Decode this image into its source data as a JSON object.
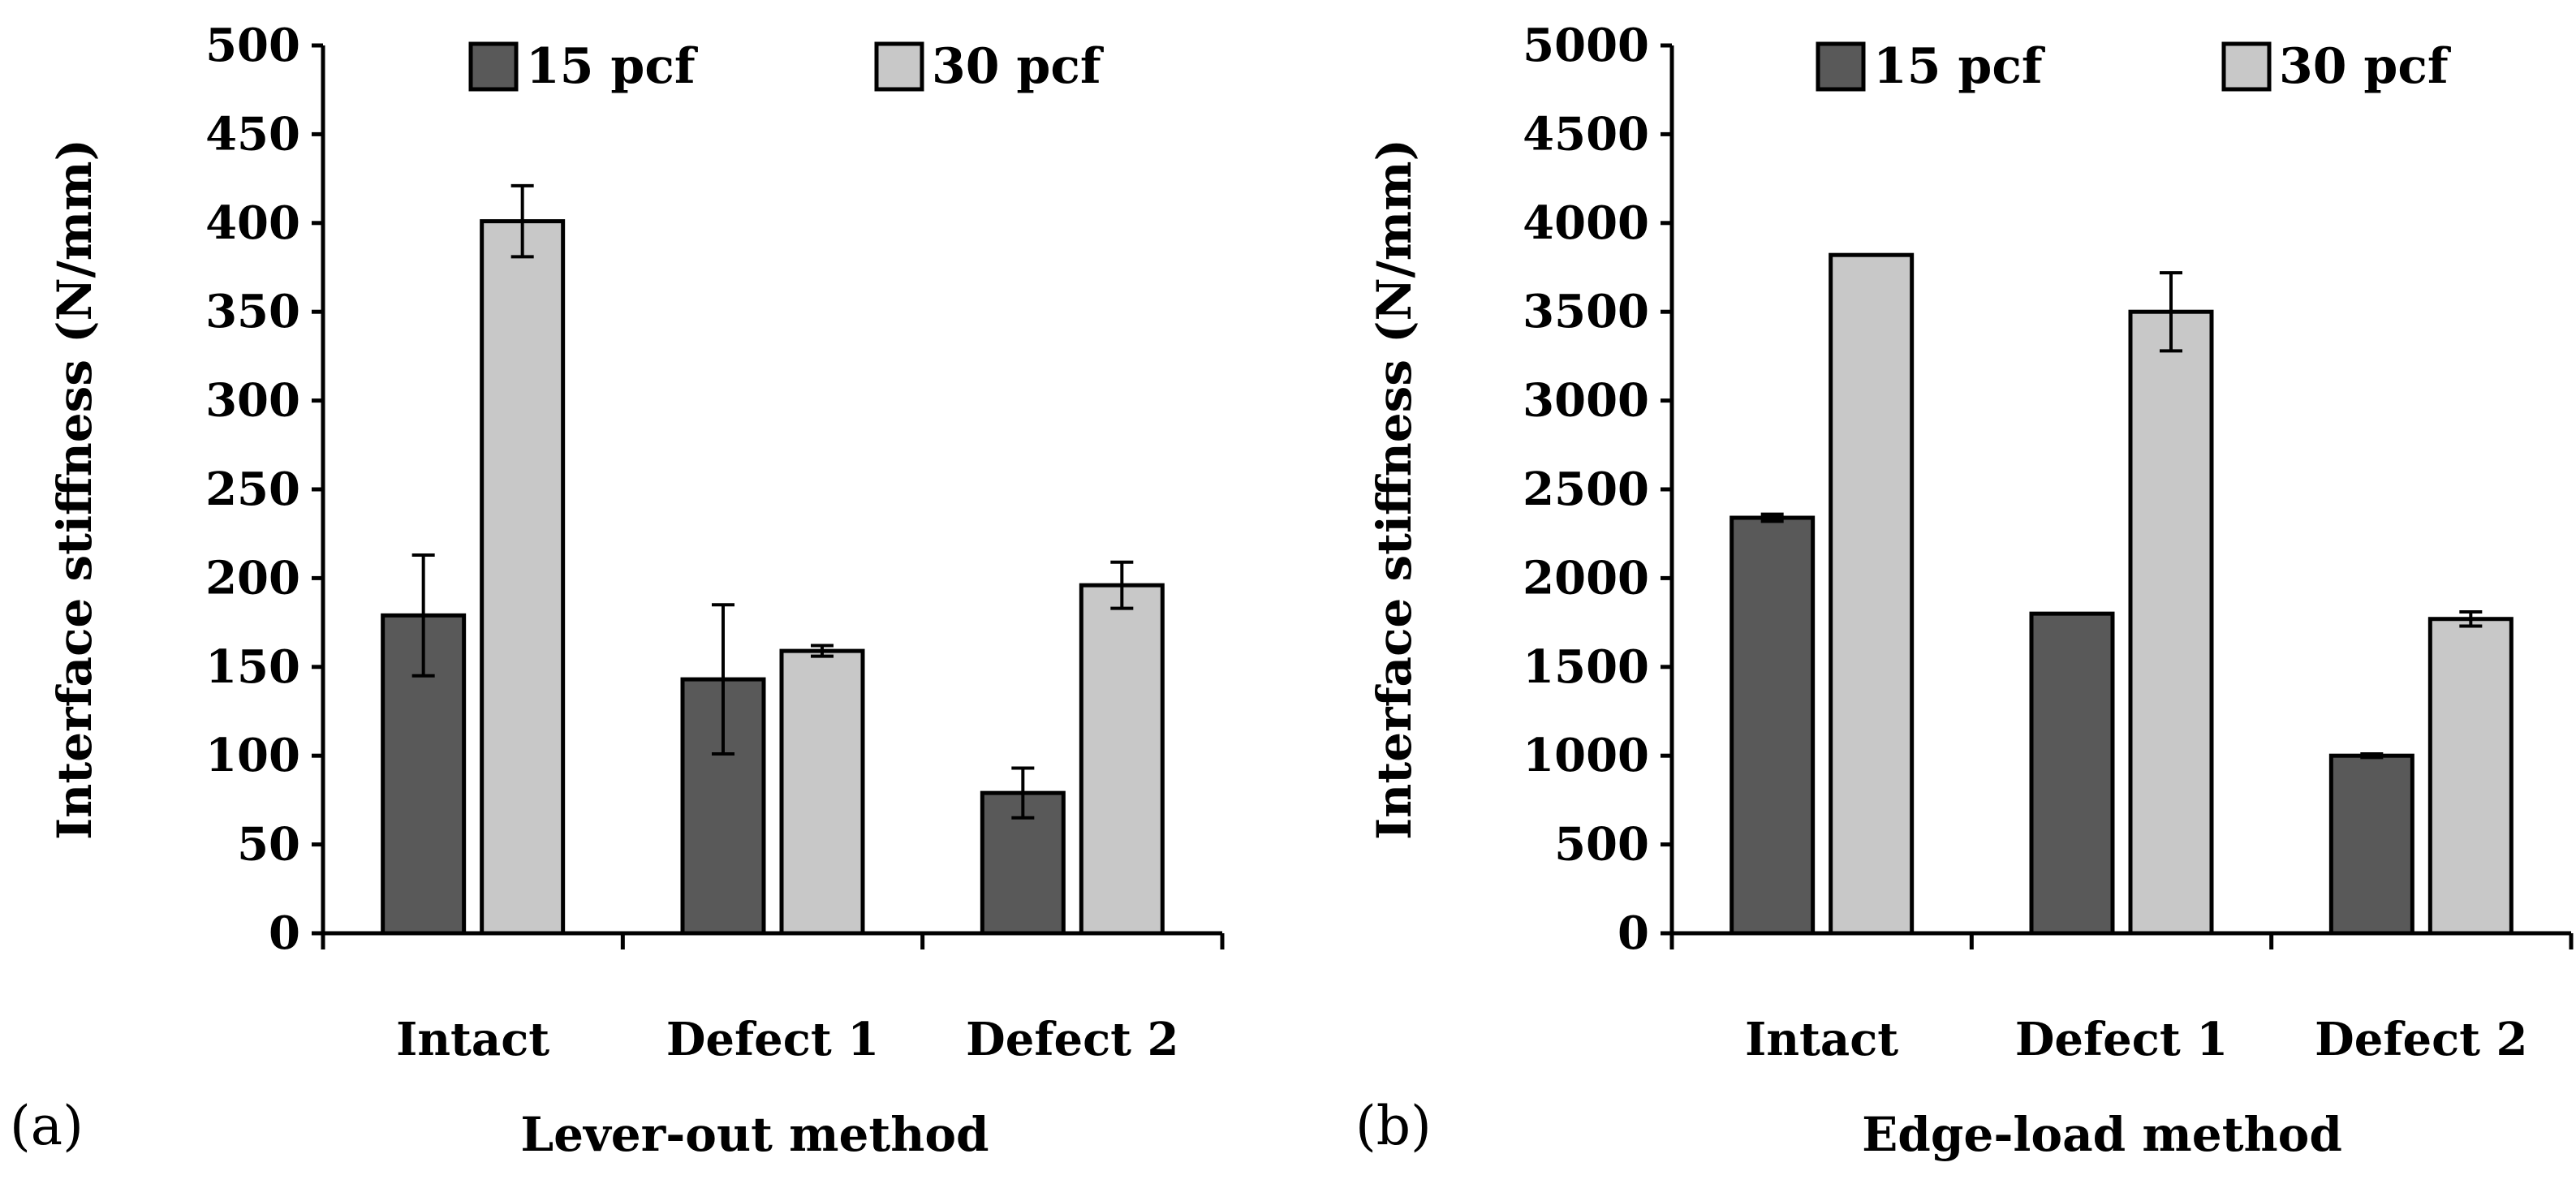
{
  "panels": [
    {
      "label": "(a)",
      "method": "Lever-out method"
    },
    {
      "label": "(b)",
      "method": "Edge-load method"
    }
  ],
  "colors": {
    "15 pcf": "#595959",
    "30 pcf": "#c8c8c8"
  },
  "chart_data": [
    {
      "type": "bar",
      "title": "",
      "xlabel": "Lever-out method",
      "ylabel": "Interface stiffness (N/mm)",
      "categories": [
        "Intact",
        "Defect 1",
        "Defect 2"
      ],
      "ylim": [
        0,
        500
      ],
      "yticks": [
        0,
        50,
        100,
        150,
        200,
        250,
        300,
        350,
        400,
        450,
        500
      ],
      "legend_position": "top",
      "grid": false,
      "series": [
        {
          "name": "15 pcf",
          "values": [
            179,
            143,
            79
          ],
          "errors": [
            34,
            42,
            14
          ]
        },
        {
          "name": "30 pcf",
          "values": [
            401,
            159,
            196
          ],
          "errors": [
            20,
            3,
            13
          ]
        }
      ]
    },
    {
      "type": "bar",
      "title": "",
      "xlabel": "Edge-load method",
      "ylabel": "Interface stiffness (N/mm)",
      "categories": [
        "Intact",
        "Defect 1",
        "Defect 2"
      ],
      "ylim": [
        0,
        5000
      ],
      "yticks": [
        0,
        500,
        1000,
        1500,
        2000,
        2500,
        3000,
        3500,
        4000,
        4500,
        5000
      ],
      "legend_position": "top",
      "grid": false,
      "series": [
        {
          "name": "15 pcf",
          "values": [
            2340,
            1800,
            1000
          ],
          "errors": [
            20,
            0,
            10
          ]
        },
        {
          "name": "30 pcf",
          "values": [
            3820,
            3500,
            1770
          ],
          "errors": [
            0,
            220,
            40
          ]
        }
      ]
    }
  ]
}
